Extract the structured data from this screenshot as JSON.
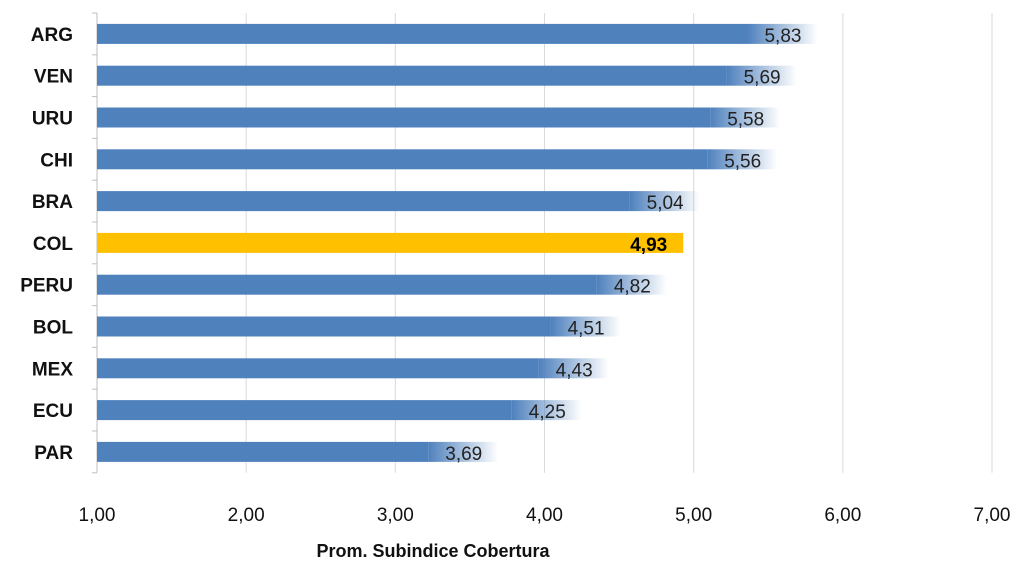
{
  "chart_data": {
    "type": "bar",
    "orientation": "horizontal",
    "categories": [
      "ARG",
      "VEN",
      "URU",
      "CHI",
      "BRA",
      "COL",
      "PERU",
      "BOL",
      "MEX",
      "ECU",
      "PAR"
    ],
    "values": [
      5.83,
      5.69,
      5.58,
      5.56,
      5.04,
      4.93,
      4.82,
      4.51,
      4.43,
      4.25,
      3.69
    ],
    "value_labels": [
      "5,83",
      "5,69",
      "5,58",
      "5,56",
      "5,04",
      "4,93",
      "4,82",
      "4,51",
      "4,43",
      "4,25",
      "3,69"
    ],
    "highlight_category": "COL",
    "xlabel": "Prom. Subindice Cobertura",
    "xlim": [
      1,
      7
    ],
    "xticks": [
      1,
      2,
      3,
      4,
      5,
      6,
      7
    ],
    "xtick_labels": [
      "1,00",
      "2,00",
      "3,00",
      "4,00",
      "5,00",
      "6,00",
      "7,00"
    ],
    "grid": "vertical",
    "legend": "none",
    "colors": {
      "bar": "#4f81bd",
      "highlight": "#ffc000",
      "grid": "#d9d9d9",
      "axis": "#bfbfbf"
    }
  }
}
